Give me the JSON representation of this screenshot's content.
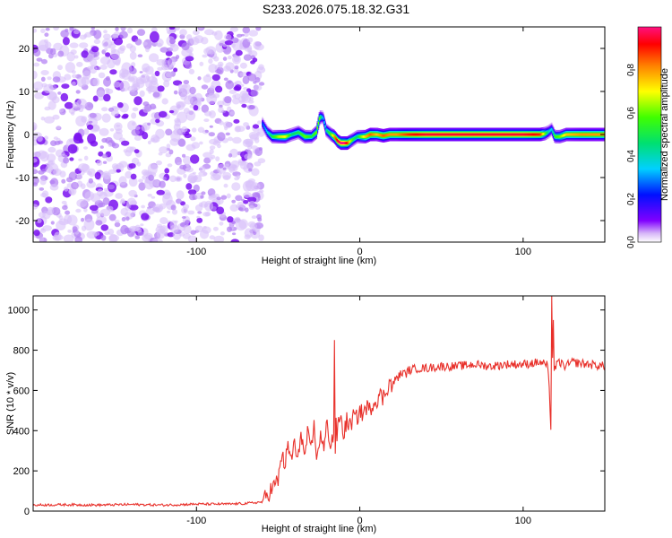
{
  "figure_title": "S233.2026.075.18.32.G31",
  "colors": {
    "snr_line": "#e8302a",
    "axis": "#000000",
    "background": "#ffffff"
  },
  "chart_data": [
    {
      "type": "heatmap",
      "title": "S233.2026.075.18.32.G31",
      "xlabel": "Height of straight line (km)",
      "ylabel": "Frequency (Hz)",
      "xlim": [
        -200,
        150
      ],
      "ylim": [
        -25,
        25
      ],
      "xticks": [
        -100,
        0,
        100
      ],
      "yticks": [
        -20,
        -10,
        0,
        10,
        20
      ],
      "noise_region_x": [
        -200,
        -60
      ],
      "ridge": {
        "x": [
          -60,
          -57,
          -54,
          -50,
          -46,
          -42,
          -38,
          -34,
          -30,
          -27,
          -25,
          -23,
          -21,
          -18,
          -16,
          -14,
          -12,
          -10,
          -8,
          -6,
          -4,
          -2,
          0,
          3,
          6,
          10,
          14,
          18,
          22,
          26,
          30,
          40,
          60,
          80,
          100,
          110,
          113,
          115,
          117,
          119,
          122,
          126,
          135,
          150
        ],
        "freq": [
          2.5,
          0.5,
          -0.5,
          -0.5,
          -0.5,
          0,
          0.5,
          -0.5,
          -0.5,
          0.5,
          4,
          4,
          1,
          0,
          -0.5,
          -1.5,
          -2,
          -2,
          -2,
          -1.5,
          -1,
          -0.5,
          -0.5,
          -0.5,
          0,
          0,
          -0.3,
          0,
          0,
          0,
          0,
          0,
          0,
          0,
          0,
          0,
          0.2,
          0.6,
          1.2,
          -0.5,
          -0.5,
          0,
          0,
          0
        ],
        "amplitude": [
          0.25,
          0.35,
          0.5,
          0.65,
          0.7,
          0.45,
          0.5,
          0.6,
          0.5,
          0.6,
          0.6,
          0.3,
          0.4,
          0.6,
          0.8,
          0.95,
          1.0,
          1.0,
          0.9,
          0.65,
          0.5,
          0.45,
          0.6,
          0.75,
          0.85,
          0.75,
          0.85,
          0.8,
          0.8,
          0.85,
          0.9,
          0.95,
          0.95,
          0.95,
          0.95,
          0.9,
          0.6,
          0.4,
          0.35,
          0.55,
          0.6,
          0.75,
          0.8,
          0.8
        ]
      },
      "colorbar": {
        "label": "Normalized spectral amplitude",
        "range": [
          0,
          1
        ],
        "ticks": [
          "0.0",
          "0.2",
          "0.4",
          "0.6",
          "0.8"
        ]
      }
    },
    {
      "type": "line",
      "xlabel": "Height of straight line (km)",
      "ylabel": "SNR (10 * v/v)",
      "xlim": [
        -200,
        150
      ],
      "ylim": [
        0,
        1070
      ],
      "xticks": [
        -100,
        0,
        100
      ],
      "yticks": [
        0,
        200,
        400,
        600,
        800,
        1000
      ],
      "series": [
        {
          "name": "SNR",
          "x": [
            -200,
            -180,
            -160,
            -140,
            -120,
            -100,
            -80,
            -70,
            -60,
            -55,
            -50,
            -48,
            -46,
            -44,
            -42,
            -40,
            -38,
            -36,
            -34,
            -32,
            -30,
            -28,
            -26,
            -24,
            -22,
            -20,
            -18,
            -16,
            -15.5,
            -15,
            -14.5,
            -14,
            -12,
            -10,
            -8,
            -6,
            -4,
            -2,
            0,
            2,
            4,
            6,
            8,
            10,
            12,
            14,
            16,
            18,
            20,
            22,
            24,
            26,
            28,
            30,
            35,
            40,
            50,
            60,
            70,
            80,
            90,
            100,
            110,
            114,
            115,
            116,
            116.5,
            117,
            117.5,
            118,
            118.5,
            119,
            120,
            122,
            126,
            130,
            140,
            150
          ],
          "values": [
            30,
            32,
            30,
            33,
            30,
            35,
            35,
            38,
            45,
            100,
            150,
            280,
            230,
            310,
            260,
            340,
            230,
            410,
            260,
            380,
            290,
            420,
            250,
            400,
            300,
            440,
            330,
            380,
            850,
            300,
            420,
            380,
            480,
            380,
            450,
            420,
            470,
            460,
            500,
            480,
            520,
            500,
            540,
            550,
            580,
            560,
            600,
            640,
            620,
            660,
            670,
            690,
            680,
            700,
            710,
            710,
            720,
            720,
            730,
            720,
            730,
            730,
            740,
            730,
            720,
            600,
            480,
            420,
            1070,
            760,
            950,
            700,
            720,
            740,
            720,
            740,
            730,
            720
          ]
        }
      ]
    }
  ]
}
